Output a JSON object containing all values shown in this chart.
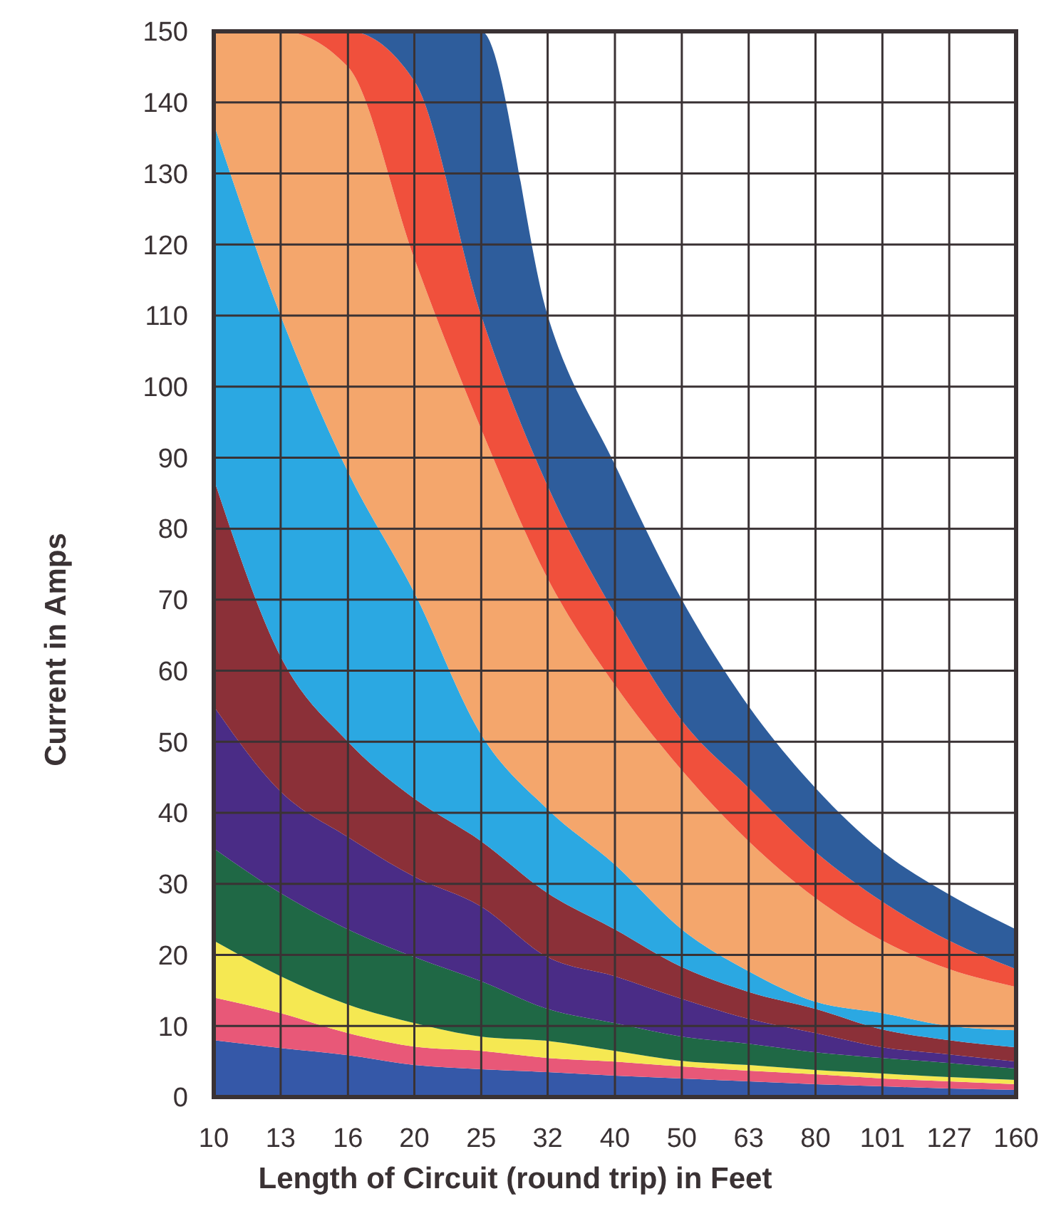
{
  "chart_data": {
    "type": "area",
    "stacked": true,
    "xlabel": "Length of Circuit (round trip) in Feet",
    "ylabel": "Current in Amps",
    "log": "x",
    "grid": true,
    "xlim": [
      10,
      160
    ],
    "xticks": [
      10,
      {
        "value": 12.6,
        "label": "13"
      },
      {
        "value": 15.9,
        "label": "16"
      },
      20,
      {
        "value": 25.2,
        "label": "25"
      },
      {
        "value": 31.7,
        "label": "32"
      },
      40,
      {
        "value": 50.4,
        "label": "50"
      },
      {
        "value": 63.5,
        "label": "63"
      },
      80,
      {
        "value": 100.8,
        "label": "101"
      },
      127,
      160
    ],
    "ylim": [
      0,
      150
    ],
    "yticks": [
      0,
      10,
      20,
      30,
      40,
      50,
      60,
      70,
      80,
      90,
      100,
      110,
      120,
      130,
      140,
      150
    ],
    "x": [
      10,
      12.6,
      15.9,
      20,
      25.2,
      31.7,
      40,
      50.4,
      63.5,
      80,
      100.8,
      127,
      160
    ],
    "series": [
      {
        "color": "#3558a8",
        "values": [
          8,
          6.9,
          5.9,
          4.5,
          3.9,
          3.5,
          3,
          2.6,
          2.2,
          1.8,
          1.5,
          1.2,
          1
        ]
      },
      {
        "color": "#e85878",
        "values": [
          6,
          4.9,
          3.1,
          2.6,
          2.6,
          2,
          2,
          1.7,
          1.5,
          1.4,
          1.1,
          1,
          0.8
        ]
      },
      {
        "color": "#f5e852",
        "values": [
          8,
          5.2,
          4,
          3.3,
          2,
          2.4,
          1.5,
          0.8,
          0.8,
          0.6,
          0.7,
          0.6,
          0.6
        ]
      },
      {
        "color": "#1f6845",
        "values": [
          13,
          11.7,
          10.6,
          9.3,
          7.8,
          4.5,
          3.9,
          3.4,
          3,
          2.5,
          2.2,
          2,
          1.6
        ]
      },
      {
        "color": "#4a2c86",
        "values": [
          20,
          14.3,
          13,
          11.3,
          10.5,
          7.3,
          6.6,
          5.3,
          3.5,
          2.7,
          1.5,
          1.2,
          1
        ]
      },
      {
        "color": "#8b3038",
        "values": [
          32,
          19,
          13.4,
          11,
          9.2,
          9,
          6.6,
          4.5,
          3.8,
          3.4,
          2.5,
          2,
          2
        ]
      },
      {
        "color": "#2ba8e2",
        "values": [
          50,
          48,
          38,
          29,
          15,
          11.8,
          9.1,
          5.3,
          2.9,
          1,
          2.3,
          2,
          2.4
        ]
      },
      {
        "color": "#f4a66c",
        "values": [
          13,
          40,
          57,
          47,
          43,
          32.5,
          25.3,
          22.4,
          18.3,
          14.6,
          10.2,
          8,
          6.1
        ]
      },
      {
        "color": "#f0503c",
        "values": [
          0,
          0,
          5,
          25,
          16,
          13,
          10,
          7,
          7.5,
          6.5,
          5.5,
          4,
          2.5
        ]
      },
      {
        "color": "#2e5d9c",
        "values": [
          0,
          0,
          0,
          7,
          40,
          24,
          21,
          17,
          11.5,
          9,
          7.1,
          6.5,
          5.6
        ]
      }
    ]
  }
}
